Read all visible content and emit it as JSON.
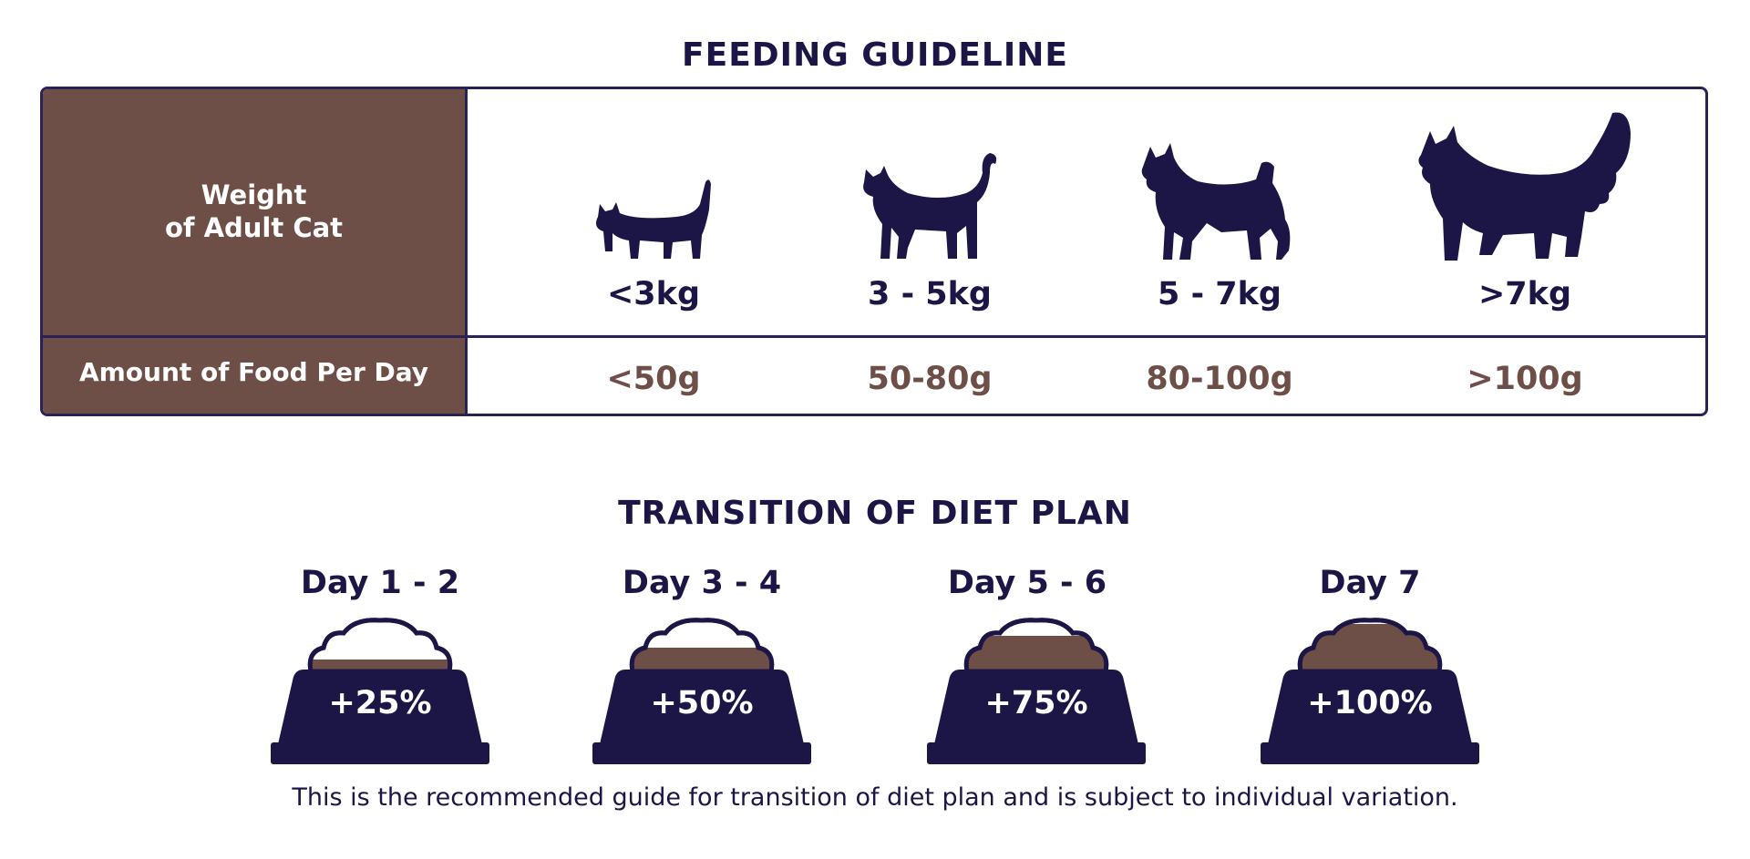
{
  "feeding": {
    "title": "FEEDING GUIDELINE",
    "weight_label_line1": "Weight",
    "weight_label_line2": "of Adult Cat",
    "amount_label": "Amount of Food Per Day",
    "columns": [
      {
        "weight": "<3kg",
        "food": "<50g",
        "icon": "small-cat-icon"
      },
      {
        "weight": "3 - 5kg",
        "food": "50-80g",
        "icon": "medium-cat-icon"
      },
      {
        "weight": "5 - 7kg",
        "food": "80-100g",
        "icon": "large-cat-icon"
      },
      {
        "weight": ">7kg",
        "food": ">100g",
        "icon": "extra-large-cat-icon"
      }
    ]
  },
  "transition": {
    "title": "TRANSITION OF DIET PLAN",
    "steps": [
      {
        "day": "Day 1 - 2",
        "percent": "+25%",
        "new_food_fraction": 0.25
      },
      {
        "day": "Day 3 - 4",
        "percent": "+50%",
        "new_food_fraction": 0.5
      },
      {
        "day": "Day 5 - 6",
        "percent": "+75%",
        "new_food_fraction": 0.75
      },
      {
        "day": "Day 7",
        "percent": "+100%",
        "new_food_fraction": 1.0
      }
    ],
    "footnote": "This is the recommended guide for transition of diet plan and is subject to individual variation."
  },
  "colors": {
    "navy": "#1c1646",
    "brown": "#6e4f47",
    "white": "#ffffff"
  }
}
